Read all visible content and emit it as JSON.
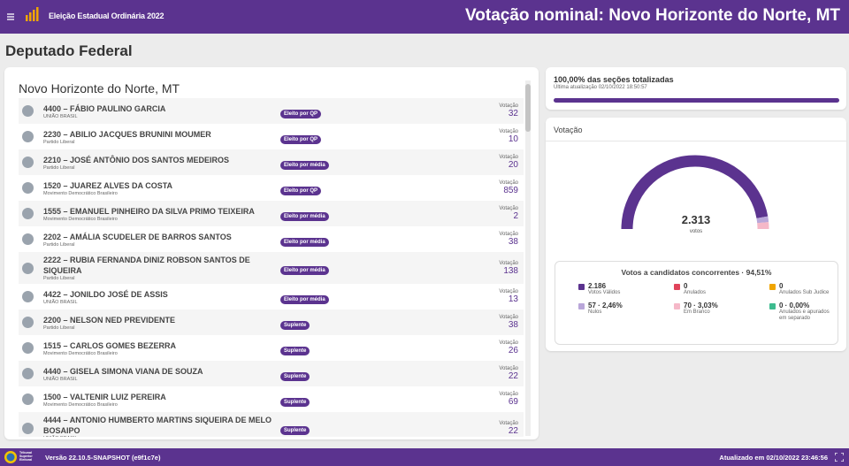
{
  "header": {
    "subtitle": "Eleição Estadual Ordinária 2022",
    "title": "Votação nominal: Novo Horizonte do Norte, MT"
  },
  "section_title": "Deputado Federal",
  "candidates": {
    "title": "Novo Horizonte do Norte, MT",
    "vote_label": "Votação",
    "rows": [
      {
        "name": "4400 – FÁBIO PAULINO GARCIA",
        "party": "UNIÃO BRASIL",
        "status": "Eleito por QP",
        "votes": "32"
      },
      {
        "name": "2230 – ABILIO JACQUES BRUNINI MOUMER",
        "party": "Partido Liberal",
        "status": "Eleito por QP",
        "votes": "10"
      },
      {
        "name": "2210 – JOSÉ ANTÔNIO DOS SANTOS MEDEIROS",
        "party": "Partido Liberal",
        "status": "Eleito por média",
        "votes": "20"
      },
      {
        "name": "1520 – JUAREZ ALVES DA COSTA",
        "party": "Movimento Democrático Brasileiro",
        "status": "Eleito por QP",
        "votes": "859"
      },
      {
        "name": "1555 – EMANUEL PINHEIRO DA SILVA PRIMO TEIXEIRA",
        "party": "Movimento Democrático Brasileiro",
        "status": "Eleito por média",
        "votes": "2"
      },
      {
        "name": "2202 – AMÁLIA SCUDELER DE BARROS SANTOS",
        "party": "Partido Liberal",
        "status": "Eleito por média",
        "votes": "38"
      },
      {
        "name": "2222 – RUBIA FERNANDA DINIZ ROBSON SANTOS DE SIQUEIRA",
        "party": "Partido Liberal",
        "status": "Eleito por média",
        "votes": "138"
      },
      {
        "name": "4422 – JONILDO JOSÉ DE ASSIS",
        "party": "UNIÃO BRASIL",
        "status": "Eleito por média",
        "votes": "13"
      },
      {
        "name": "2200 – NELSON NED PREVIDENTE",
        "party": "Partido Liberal",
        "status": "Suplente",
        "votes": "38"
      },
      {
        "name": "1515 – CARLOS GOMES BEZERRA",
        "party": "Movimento Democrático Brasileiro",
        "status": "Suplente",
        "votes": "26"
      },
      {
        "name": "4440 – GISELA SIMONA VIANA DE SOUZA",
        "party": "UNIÃO BRASIL",
        "status": "Suplente",
        "votes": "22"
      },
      {
        "name": "1500 – VALTENIR LUIZ PEREIRA",
        "party": "Movimento Democrático Brasileiro",
        "status": "Suplente",
        "votes": "69"
      },
      {
        "name": "4444 – ANTONIO HUMBERTO MARTINS SIQUEIRA DE MELO BOSAIPO",
        "party": "UNIÃO BRASIL",
        "status": "Suplente",
        "votes": "22"
      }
    ]
  },
  "totalization": {
    "title": "100,00% das seções totalizadas",
    "updated": "Última atualização 02/10/2022 18:50:57"
  },
  "votes": {
    "title": "Votação",
    "total": "2.313",
    "unit": "votos",
    "breakdown_title": "Votos a candidatos concorrentes · 94,51%",
    "items": [
      {
        "value": "2.186",
        "label": "Votos Válidos",
        "color": "#5b338f"
      },
      {
        "value": "0",
        "label": "Anulados",
        "color": "#e0435a"
      },
      {
        "value": "0",
        "label": "Anulados Sub Judice",
        "color": "#f0a500"
      },
      {
        "value": "57 · 2,46%",
        "label": "Nulos",
        "color": "#b9a6d9"
      },
      {
        "value": "70 · 3,03%",
        "label": "Em Branco",
        "color": "#f5b8c8"
      },
      {
        "value": "0 · 0,00%",
        "label": "Anulados e apurados em separado",
        "color": "#3dbb8f"
      }
    ]
  },
  "footer": {
    "org": "Tribunal Superior Eleitoral",
    "version": "Versão 22.10.5-SNAPSHOT (e9f1c7e)",
    "updated": "Atualizado em 02/10/2022 23:46:56"
  }
}
